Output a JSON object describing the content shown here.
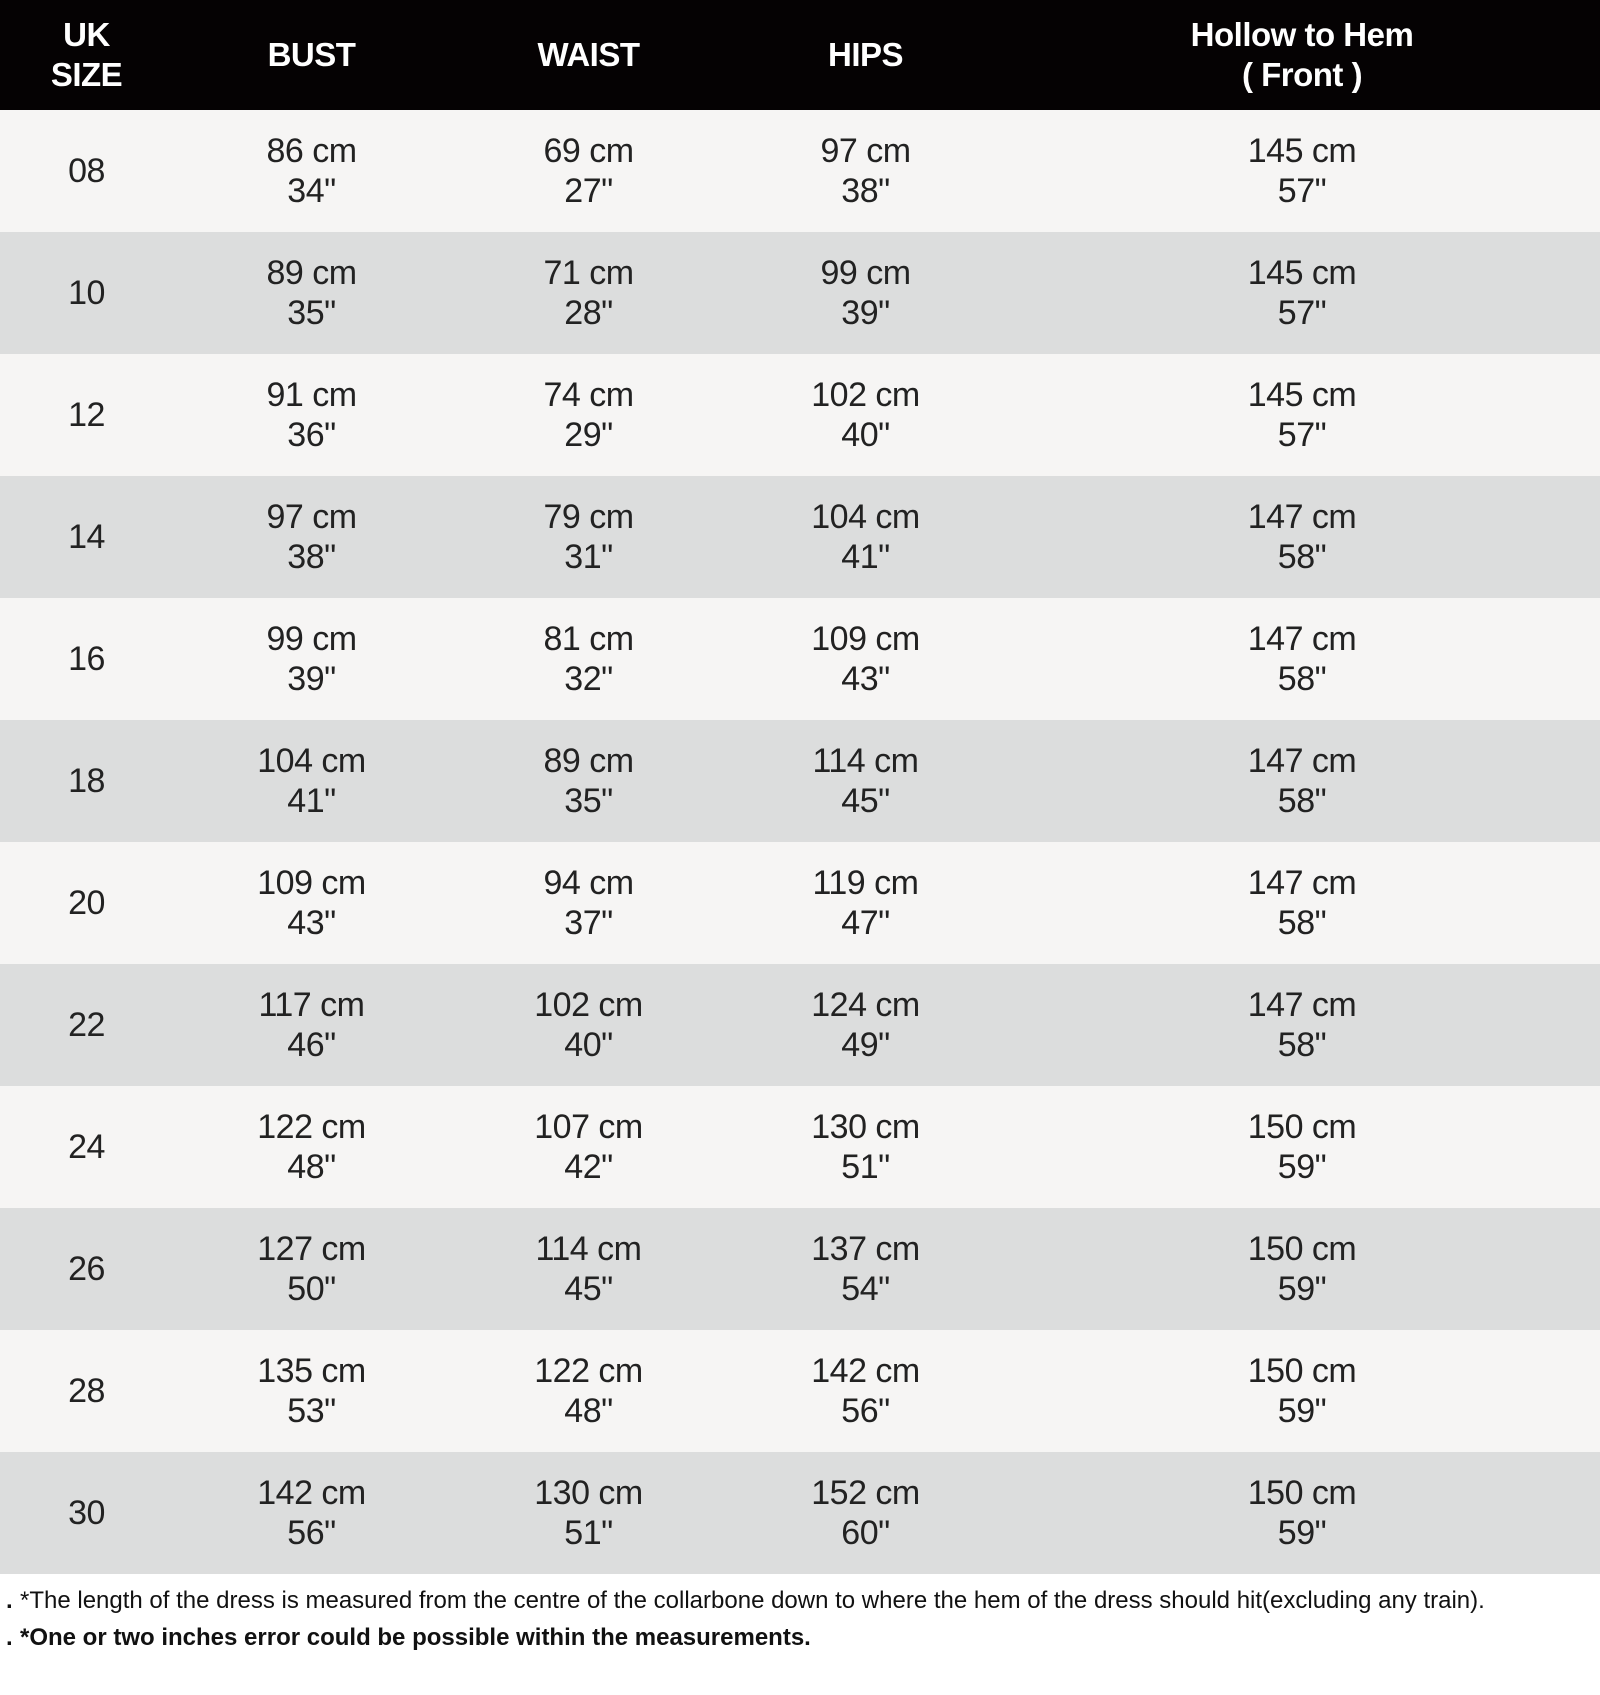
{
  "table": {
    "headers": [
      {
        "line1": "UK",
        "line2": "SIZE"
      },
      {
        "line1": "BUST",
        "line2": ""
      },
      {
        "line1": "WAIST",
        "line2": ""
      },
      {
        "line1": "HIPS",
        "line2": ""
      },
      {
        "line1": "Hollow to Hem",
        "line2": "( Front )"
      }
    ],
    "rows": [
      {
        "size": "08",
        "bust": [
          "86 cm",
          "34\""
        ],
        "waist": [
          "69 cm",
          "27\""
        ],
        "hips": [
          "97 cm",
          "38\""
        ],
        "hem": [
          "145 cm",
          "57\""
        ]
      },
      {
        "size": "10",
        "bust": [
          "89 cm",
          "35\""
        ],
        "waist": [
          "71 cm",
          "28\""
        ],
        "hips": [
          "99 cm",
          "39\""
        ],
        "hem": [
          "145 cm",
          "57\""
        ]
      },
      {
        "size": "12",
        "bust": [
          "91 cm",
          "36\""
        ],
        "waist": [
          "74 cm",
          "29\""
        ],
        "hips": [
          "102 cm",
          "40\""
        ],
        "hem": [
          "145 cm",
          "57\""
        ]
      },
      {
        "size": "14",
        "bust": [
          "97 cm",
          "38\""
        ],
        "waist": [
          "79 cm",
          "31\""
        ],
        "hips": [
          "104 cm",
          "41\""
        ],
        "hem": [
          "147 cm",
          "58\""
        ]
      },
      {
        "size": "16",
        "bust": [
          "99 cm",
          "39\""
        ],
        "waist": [
          "81 cm",
          "32\""
        ],
        "hips": [
          "109 cm",
          "43\""
        ],
        "hem": [
          "147 cm",
          "58\""
        ]
      },
      {
        "size": "18",
        "bust": [
          "104 cm",
          "41\""
        ],
        "waist": [
          "89 cm",
          "35\""
        ],
        "hips": [
          "114 cm",
          "45\""
        ],
        "hem": [
          "147 cm",
          "58\""
        ]
      },
      {
        "size": "20",
        "bust": [
          "109 cm",
          "43\""
        ],
        "waist": [
          "94 cm",
          "37\""
        ],
        "hips": [
          "119 cm",
          "47\""
        ],
        "hem": [
          "147 cm",
          "58\""
        ]
      },
      {
        "size": "22",
        "bust": [
          "117 cm",
          "46\""
        ],
        "waist": [
          "102 cm",
          "40\""
        ],
        "hips": [
          "124 cm",
          "49\""
        ],
        "hem": [
          "147 cm",
          "58\""
        ]
      },
      {
        "size": "24",
        "bust": [
          "122 cm",
          "48\""
        ],
        "waist": [
          "107 cm",
          "42\""
        ],
        "hips": [
          "130 cm",
          "51\""
        ],
        "hem": [
          "150 cm",
          "59\""
        ]
      },
      {
        "size": "26",
        "bust": [
          "127 cm",
          "50\""
        ],
        "waist": [
          "114 cm",
          "45\""
        ],
        "hips": [
          "137 cm",
          "54\""
        ],
        "hem": [
          "150 cm",
          "59\""
        ]
      },
      {
        "size": "28",
        "bust": [
          "135 cm",
          "53\""
        ],
        "waist": [
          "122 cm",
          "48\""
        ],
        "hips": [
          "142 cm",
          "56\""
        ],
        "hem": [
          "150 cm",
          "59\""
        ]
      },
      {
        "size": "30",
        "bust": [
          "142 cm",
          "56\""
        ],
        "waist": [
          "130 cm",
          "51\""
        ],
        "hips": [
          "152 cm",
          "60\""
        ],
        "hem": [
          "150 cm",
          "59\""
        ]
      }
    ]
  },
  "notes": [
    {
      "bullet": ".",
      "text": "*The length of the dress is measured from the centre of the collarbone down to where the hem of the dress should hit(excluding any train).",
      "bold": false
    },
    {
      "bullet": ".",
      "text": "*One or two inches error could be possible within the measurements.",
      "bold": true
    }
  ],
  "colors": {
    "header_bg": "#050203",
    "row_light": "#f6f5f4",
    "row_dark": "#dcdddd"
  }
}
